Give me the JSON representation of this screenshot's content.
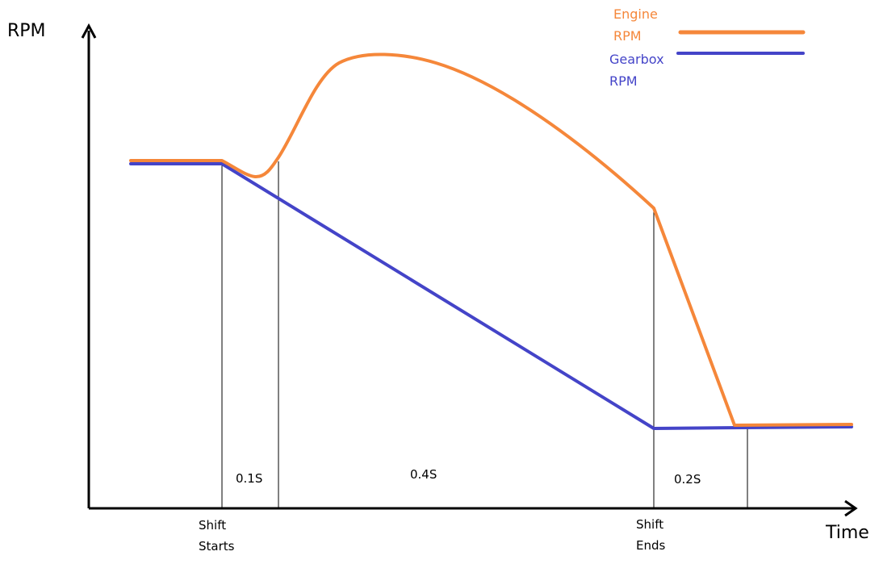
{
  "axes": {
    "y_label": "RPM",
    "x_label": "Time"
  },
  "legend": [
    {
      "line1": "Engine",
      "line2": "RPM",
      "color": "#f5873a"
    },
    {
      "line1": "Gearbox",
      "line2": "RPM",
      "color": "#4444c8"
    }
  ],
  "events": {
    "shift_start": {
      "line1": "Shift",
      "line2": "Starts"
    },
    "shift_end": {
      "line1": "Shift",
      "line2": "Ends"
    }
  },
  "durations": {
    "first": "0.1S",
    "middle": "0.4S",
    "last": "0.2S"
  },
  "colors": {
    "axis": "#000000",
    "engine": "#f5873a",
    "gearbox": "#4444c8"
  }
}
